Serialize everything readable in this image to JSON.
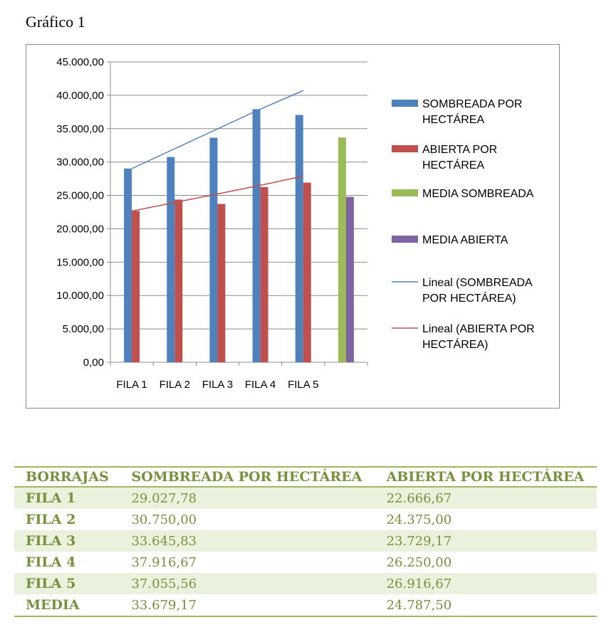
{
  "caption": "Gráfico 1",
  "chart_data": {
    "type": "bar",
    "categories": [
      "FILA 1",
      "FILA 2",
      "FILA 3",
      "FILA 4",
      "FILA 5",
      ""
    ],
    "ylim": [
      0,
      45000
    ],
    "y_ticks": [
      "0,00",
      "5.000,00",
      "10.000,00",
      "15.000,00",
      "20.000,00",
      "25.000,00",
      "30.000,00",
      "35.000,00",
      "40.000,00",
      "45.000,00"
    ],
    "grid": true,
    "legend_position": "right",
    "series": [
      {
        "name": "SOMBREADA POR HECTÁREA",
        "kind": "bar",
        "color": "#4f81bd",
        "values": [
          29027.78,
          30750.0,
          33645.83,
          37916.67,
          37055.56,
          null
        ]
      },
      {
        "name": "ABIERTA POR HECTÁREA",
        "kind": "bar",
        "color": "#c0504d",
        "values": [
          22666.67,
          24375.0,
          23729.17,
          26250.0,
          26916.67,
          null
        ]
      },
      {
        "name": "MEDIA SOMBREADA",
        "kind": "bar",
        "color": "#9bbb59",
        "values": [
          null,
          null,
          null,
          null,
          null,
          33679.17
        ]
      },
      {
        "name": "MEDIA ABIERTA",
        "kind": "bar",
        "color": "#8064a2",
        "values": [
          null,
          null,
          null,
          null,
          null,
          24787.5
        ]
      },
      {
        "name": "Lineal (SOMBREADA POR HECTÁREA)",
        "kind": "trendline",
        "color": "#4f81bd",
        "values": [
          29018,
          31990,
          34963,
          37935,
          40708,
          null
        ]
      },
      {
        "name": "Lineal (ABIERTA POR HECTÁREA)",
        "kind": "trendline",
        "color": "#c0504d",
        "values": [
          22650,
          23936,
          25222,
          26508,
          27894,
          null
        ]
      }
    ]
  },
  "table": {
    "headers": [
      "BORRAJAS",
      "SOMBREADA POR HECTÁREA",
      "ABIERTA POR HECTÁREA"
    ],
    "rows": [
      {
        "label": "FILA 1",
        "sombreada": "29.027,78",
        "abierta": "22.666,67"
      },
      {
        "label": "FILA 2",
        "sombreada": "30.750,00",
        "abierta": "24.375,00"
      },
      {
        "label": "FILA 3",
        "sombreada": "33.645,83",
        "abierta": "23.729,17"
      },
      {
        "label": "FILA 4",
        "sombreada": "37.916,67",
        "abierta": "26.250,00"
      },
      {
        "label": "FILA 5",
        "sombreada": "37.055,56",
        "abierta": "26.916,67"
      },
      {
        "label": "MEDIA",
        "sombreada": "33.679,17",
        "abierta": "24.787,50"
      }
    ]
  }
}
